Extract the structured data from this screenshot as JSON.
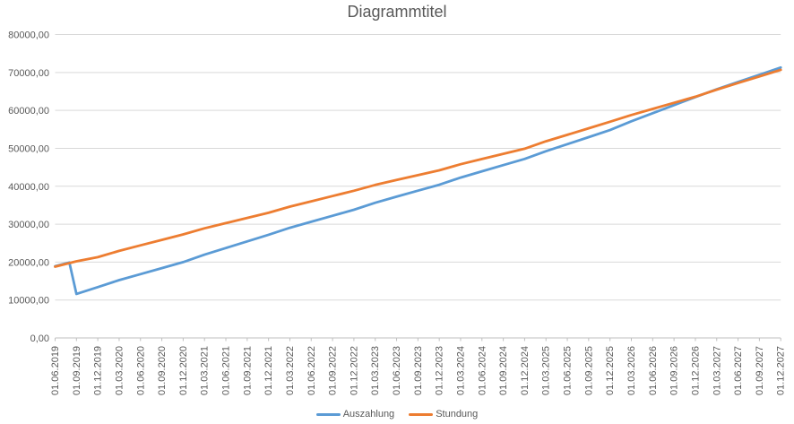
{
  "chart_data": {
    "type": "line",
    "title": "Diagrammtitel",
    "grid": true,
    "legend_position": "bottom-center",
    "x_axis": {
      "tick_labels": [
        "01.06.2019",
        "01.09.2019",
        "01.12.2019",
        "01.03.2020",
        "01.06.2020",
        "01.09.2020",
        "01.12.2020",
        "01.03.2021",
        "01.06.2021",
        "01.09.2021",
        "01.12.2021",
        "01.03.2022",
        "01.06.2022",
        "01.09.2022",
        "01.12.2022",
        "01.03.2023",
        "01.06.2023",
        "01.09.2023",
        "01.12.2023",
        "01.03.2024",
        "01.06.2024",
        "01.09.2024",
        "01.12.2024",
        "01.03.2025",
        "01.06.2025",
        "01.09.2025",
        "01.12.2025",
        "01.03.2026",
        "01.06.2026",
        "01.09.2026",
        "01.12.2026",
        "01.03.2027",
        "01.06.2027",
        "01.09.2027",
        "01.12.2027"
      ],
      "tick_interval_months": 3,
      "label_rotation_deg": -90
    },
    "y_axis": {
      "tick_labels": [
        "0,00",
        "10000,00",
        "20000,00",
        "30000,00",
        "40000,00",
        "50000,00",
        "60000,00",
        "70000,00",
        "80000,00"
      ],
      "tick_values": [
        0,
        10000,
        20000,
        30000,
        40000,
        50000,
        60000,
        70000,
        80000
      ],
      "min": 0,
      "max": 80000
    },
    "series": [
      {
        "name": "Auszahlung",
        "color": "#5B9BD5",
        "points_t_months_from_2019_06": [
          [
            0,
            18900
          ],
          [
            2,
            19900
          ],
          [
            3,
            11600
          ],
          [
            6,
            13400
          ],
          [
            9,
            15250
          ],
          [
            12,
            16830
          ],
          [
            15,
            18410
          ],
          [
            18,
            20000
          ],
          [
            21,
            21960
          ],
          [
            24,
            23710
          ],
          [
            27,
            25450
          ],
          [
            30,
            27200
          ],
          [
            33,
            29050
          ],
          [
            36,
            30640
          ],
          [
            39,
            32220
          ],
          [
            42,
            33800
          ],
          [
            45,
            35650
          ],
          [
            48,
            37240
          ],
          [
            51,
            38820
          ],
          [
            54,
            40400
          ],
          [
            57,
            42290
          ],
          [
            60,
            43930
          ],
          [
            63,
            45560
          ],
          [
            66,
            47200
          ],
          [
            69,
            49240
          ],
          [
            72,
            51090
          ],
          [
            75,
            52950
          ],
          [
            78,
            54800
          ],
          [
            81,
            57120
          ],
          [
            84,
            59250
          ],
          [
            87,
            61370
          ],
          [
            90,
            63500
          ],
          [
            93,
            65570
          ],
          [
            96,
            67480
          ],
          [
            99,
            69390
          ],
          [
            102,
            71300
          ]
        ]
      },
      {
        "name": "Stundung",
        "color": "#ED7D31",
        "points_t_months_from_2019_06": [
          [
            0,
            18800
          ],
          [
            3,
            20200
          ],
          [
            6,
            21300
          ],
          [
            9,
            22960
          ],
          [
            12,
            24410
          ],
          [
            15,
            25850
          ],
          [
            18,
            27300
          ],
          [
            21,
            28910
          ],
          [
            24,
            30270
          ],
          [
            27,
            31640
          ],
          [
            30,
            33000
          ],
          [
            33,
            34630
          ],
          [
            36,
            36020
          ],
          [
            39,
            37410
          ],
          [
            42,
            38800
          ],
          [
            45,
            40350
          ],
          [
            48,
            41640
          ],
          [
            51,
            42920
          ],
          [
            54,
            44200
          ],
          [
            57,
            45810
          ],
          [
            60,
            47170
          ],
          [
            63,
            48540
          ],
          [
            66,
            49900
          ],
          [
            69,
            51850
          ],
          [
            72,
            53560
          ],
          [
            75,
            55280
          ],
          [
            78,
            57000
          ],
          [
            81,
            58770
          ],
          [
            84,
            60380
          ],
          [
            87,
            61990
          ],
          [
            90,
            63600
          ],
          [
            93,
            65460
          ],
          [
            96,
            67210
          ],
          [
            99,
            68950
          ],
          [
            102,
            70700
          ]
        ]
      }
    ]
  },
  "colors": {
    "background": "#FFFFFF",
    "text": "#595959",
    "gridline": "#D9D9D9",
    "axis_line": "#BFBFBF",
    "series_auszahlung": "#5B9BD5",
    "series_stundung": "#ED7D31"
  }
}
